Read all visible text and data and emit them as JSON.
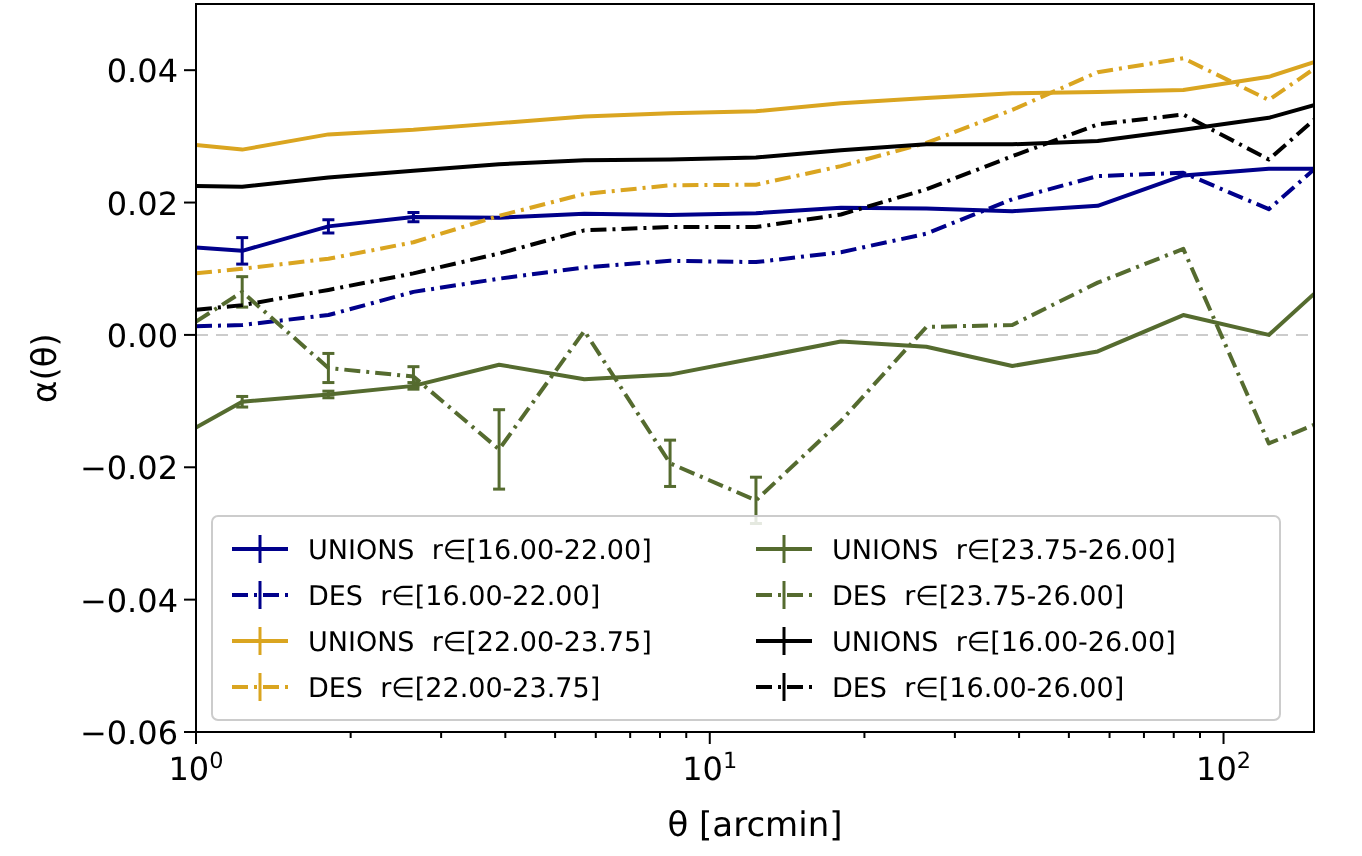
{
  "chart_data": {
    "type": "line",
    "xlabel": "θ [arcmin]",
    "ylabel": "α(θ)",
    "log": "x",
    "xlim": [
      1,
      150
    ],
    "ylim": [
      -0.06,
      0.05
    ],
    "xticks": [
      {
        "value": 1,
        "label": "10$^{0}$"
      },
      {
        "value": 2,
        "label": null
      },
      {
        "value": 3,
        "label": null
      },
      {
        "value": 4,
        "label": null
      },
      {
        "value": 5,
        "label": null
      },
      {
        "value": 6,
        "label": null
      },
      {
        "value": 7,
        "label": null
      },
      {
        "value": 8,
        "label": null
      },
      {
        "value": 9,
        "label": null
      },
      {
        "value": 10,
        "label": "10$^{1}$"
      },
      {
        "value": 20,
        "label": null
      },
      {
        "value": 30,
        "label": null
      },
      {
        "value": 40,
        "label": null
      },
      {
        "value": 50,
        "label": null
      },
      {
        "value": 60,
        "label": null
      },
      {
        "value": 70,
        "label": null
      },
      {
        "value": 80,
        "label": null
      },
      {
        "value": 90,
        "label": null
      },
      {
        "value": 100,
        "label": "10$^{2}$"
      }
    ],
    "yticks": [
      {
        "value": -0.06,
        "label": "−0.06"
      },
      {
        "value": -0.04,
        "label": "−0.04"
      },
      {
        "value": -0.02,
        "label": "−0.02"
      },
      {
        "value": 0,
        "label": "0.00"
      },
      {
        "value": 0.02,
        "label": "0.02"
      },
      {
        "value": 0.04,
        "label": "0.04"
      }
    ],
    "grid": false,
    "legend": "bottom left",
    "marker": "none",
    "ref_lines": [
      {
        "axis": "y",
        "value": 0,
        "color": "#cccccc",
        "line_style": "dashed"
      }
    ],
    "x": [
      1,
      1.23,
      1.81,
      2.65,
      3.89,
      5.7,
      8.37,
      12.3,
      18,
      26.4,
      38.8,
      56.9,
      83.5,
      122.5,
      150
    ],
    "series": [
      {
        "name": "UNIONS  r∈[16.00-22.00]",
        "color": "#00008b",
        "line_style": "solid",
        "values": [
          0.0132,
          0.0127,
          0.0164,
          0.0178,
          0.0177,
          0.0183,
          0.0181,
          0.0184,
          0.0192,
          0.0191,
          0.0187,
          0.0195,
          0.0241,
          0.0251,
          0.0251
        ],
        "errors": [
          null,
          0.002,
          0.001,
          0.0007,
          null,
          null,
          null,
          null,
          null,
          null,
          null,
          null,
          null,
          null,
          null
        ]
      },
      {
        "name": "DES  r∈[16.00-22.00]",
        "color": "#00008b",
        "line_style": "dashdot",
        "values": [
          0.0013,
          0.0015,
          0.003,
          0.0065,
          0.0085,
          0.0102,
          0.0112,
          0.011,
          0.0125,
          0.0153,
          0.0205,
          0.024,
          0.0245,
          0.019,
          0.025
        ]
      },
      {
        "name": "UNIONS  r∈[22.00-23.75]",
        "color": "#daa520",
        "line_style": "solid",
        "values": [
          0.0287,
          0.028,
          0.0303,
          0.031,
          0.032,
          0.033,
          0.0335,
          0.0338,
          0.035,
          0.0358,
          0.0365,
          0.0367,
          0.037,
          0.039,
          0.0412
        ]
      },
      {
        "name": "DES  r∈[22.00-23.75]",
        "color": "#daa520",
        "line_style": "dashdot",
        "values": [
          0.0093,
          0.01,
          0.0115,
          0.014,
          0.018,
          0.0213,
          0.0226,
          0.0227,
          0.0255,
          0.029,
          0.034,
          0.0397,
          0.0418,
          0.0355,
          0.0402
        ]
      },
      {
        "name": "UNIONS  r∈[23.75-26.00]",
        "color": "#556b2f",
        "line_style": "solid",
        "values": [
          -0.014,
          -0.0101,
          -0.009,
          -0.0077,
          -0.0045,
          -0.0067,
          -0.006,
          -0.0035,
          -0.001,
          -0.0018,
          -0.0047,
          -0.0025,
          0.003,
          0.0,
          0.0062
        ],
        "errors": [
          null,
          0.0008,
          0.0005,
          0.0005,
          null,
          null,
          null,
          null,
          null,
          null,
          null,
          null,
          null,
          null,
          null
        ]
      },
      {
        "name": "DES  r∈[23.75-26.00]",
        "color": "#556b2f",
        "line_style": "dashdot",
        "values": [
          0.002,
          0.0065,
          -0.005,
          -0.0063,
          -0.0173,
          0.0006,
          -0.0194,
          -0.025,
          -0.013,
          0.0012,
          0.0015,
          0.0079,
          0.013,
          -0.0164,
          -0.0136
        ],
        "errors": [
          null,
          0.0023,
          0.0022,
          0.0015,
          0.006,
          null,
          0.0035,
          0.0035,
          null,
          null,
          null,
          null,
          null,
          null,
          null
        ]
      },
      {
        "name": "UNIONS  r∈[16.00-26.00]",
        "color": "#000000",
        "line_style": "solid",
        "values": [
          0.0225,
          0.0224,
          0.0238,
          0.0248,
          0.0258,
          0.0264,
          0.0265,
          0.0268,
          0.0279,
          0.0288,
          0.0288,
          0.0293,
          0.031,
          0.0328,
          0.0347
        ]
      },
      {
        "name": "DES  r∈[16.00-26.00]",
        "color": "#000000",
        "line_style": "dashdot",
        "values": [
          0.0038,
          0.0045,
          0.0068,
          0.0093,
          0.0123,
          0.0158,
          0.0163,
          0.0163,
          0.0182,
          0.022,
          0.027,
          0.0318,
          0.0333,
          0.0265,
          0.0325
        ]
      }
    ]
  }
}
